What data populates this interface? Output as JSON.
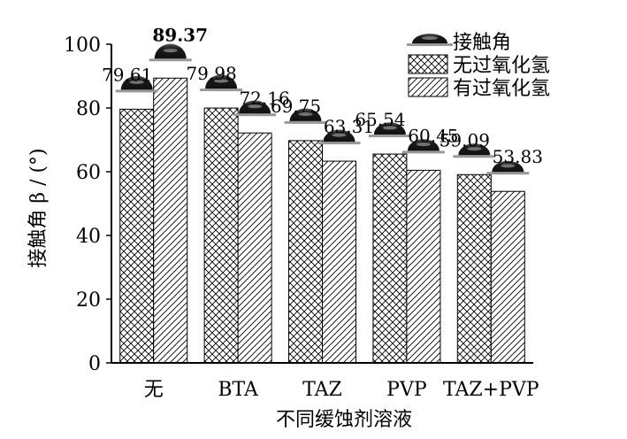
{
  "chart_data": {
    "type": "bar",
    "title": "",
    "xlabel": "不同缓蚀剂溶液",
    "ylabel": "接触角 β / (°)",
    "ylim": [
      0,
      100
    ],
    "yticks": [
      0,
      20,
      40,
      60,
      80,
      100
    ],
    "categories": [
      "无",
      "BTA",
      "TAZ",
      "PVP",
      "TAZ+PVP"
    ],
    "series": [
      {
        "name": "无过氧化氢",
        "values": [
          79.61,
          79.98,
          69.75,
          65.54,
          59.09
        ]
      },
      {
        "name": "有过氧化氢",
        "values": [
          89.37,
          72.16,
          63.31,
          60.45,
          53.83
        ]
      }
    ],
    "value_labels": [
      [
        "79.61",
        "79.98",
        "69.75",
        "65.54",
        "59.09"
      ],
      [
        "89.37",
        "72.16",
        "63.31",
        "60.45",
        "53.83"
      ]
    ],
    "legend": {
      "placement": "top-right",
      "droplet_label": "接触角",
      "droplet_icon": "water-droplet-icon"
    },
    "colors": {
      "bar_fill": "#ffffff",
      "stroke": "#000000",
      "droplet": "#222222"
    },
    "grid": false
  }
}
